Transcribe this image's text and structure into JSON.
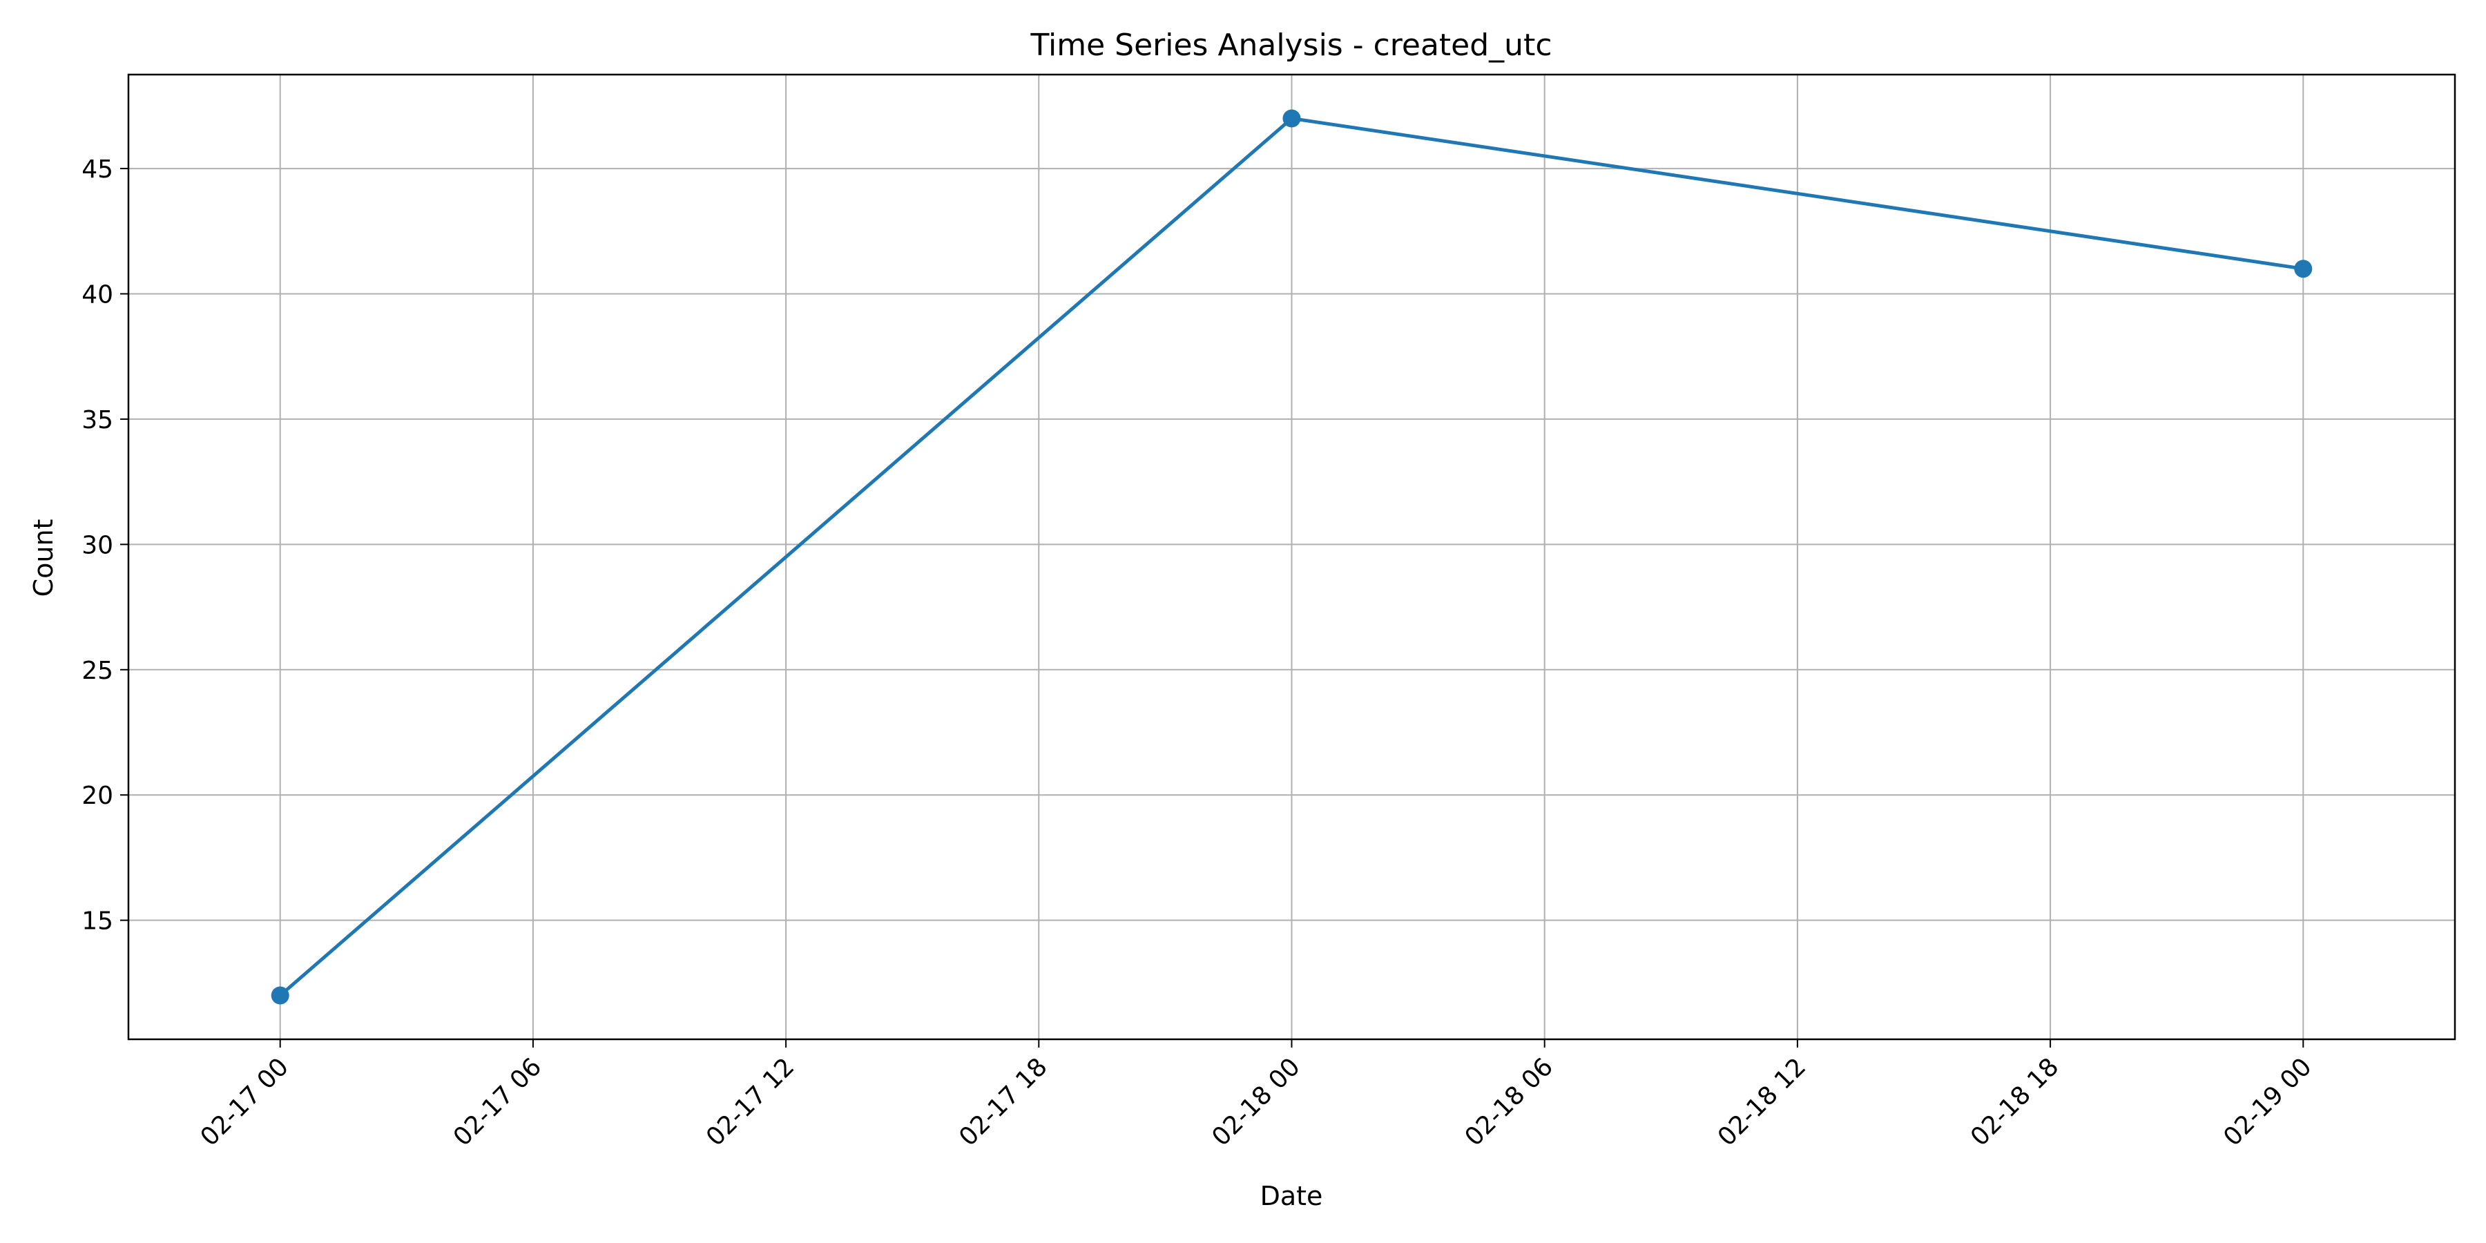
{
  "chart_data": {
    "type": "line",
    "title": "Time Series Analysis - created_utc",
    "xlabel": "Date",
    "ylabel": "Count",
    "x": [
      "2023-02-17T00:00",
      "2023-02-18T00:00",
      "2023-02-19T00:00"
    ],
    "series": [
      {
        "values": [
          12,
          47,
          41
        ],
        "color": "#1f77b4",
        "marker": "circle"
      }
    ],
    "x_ticks": [
      "2023-02-17T00:00",
      "2023-02-17T06:00",
      "2023-02-17T12:00",
      "2023-02-17T18:00",
      "2023-02-18T00:00",
      "2023-02-18T06:00",
      "2023-02-18T12:00",
      "2023-02-18T18:00",
      "2023-02-19T00:00"
    ],
    "x_tick_labels": [
      "02-17 00",
      "02-17 06",
      "02-17 12",
      "02-17 18",
      "02-18 00",
      "02-18 06",
      "02-18 12",
      "02-18 18",
      "02-19 00"
    ],
    "y_ticks": [
      15,
      20,
      25,
      30,
      35,
      40,
      45
    ],
    "y_tick_labels": [
      "15",
      "20",
      "25",
      "30",
      "35",
      "40",
      "45"
    ],
    "xlim": [
      "2023-02-16T20:24",
      "2023-02-19T03:36"
    ],
    "ylim": [
      10.25,
      48.75
    ],
    "grid": true,
    "legend": "none",
    "x_tick_rotation_deg": 45,
    "colors": {
      "line": "#1f77b4",
      "grid": "#b0b0b0",
      "frame": "#000000"
    }
  }
}
